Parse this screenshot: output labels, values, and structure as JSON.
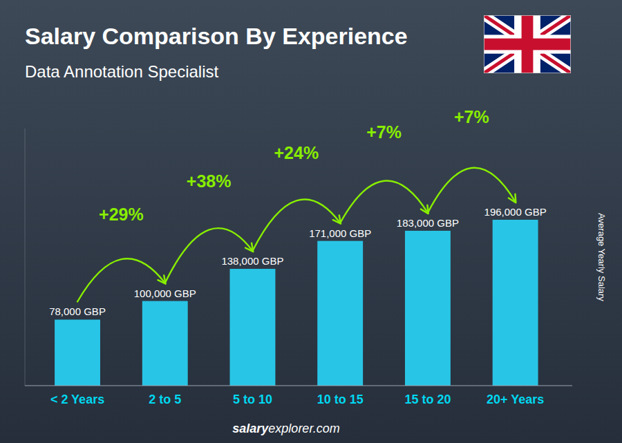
{
  "chart_data": {
    "type": "bar",
    "title": "Salary Comparison By Experience",
    "subtitle": "Data Annotation Specialist",
    "y_label": "Average Yearly Salary",
    "categories": [
      "< 2 Years",
      "2 to 5",
      "5 to 10",
      "10 to 15",
      "15 to 20",
      "20+ Years"
    ],
    "values": [
      78000,
      100000,
      138000,
      171000,
      183000,
      196000
    ],
    "value_labels": [
      "78,000 GBP",
      "100,000 GBP",
      "138,000 GBP",
      "171,000 GBP",
      "183,000 GBP",
      "196,000 GBP"
    ],
    "data_labels": true,
    "annotations": [
      "+29%",
      "+38%",
      "+24%",
      "+7%",
      "+7%"
    ],
    "watermark": [
      "salary",
      "explorer.com"
    ],
    "color": "#29c5e6",
    "ylim": [
      0,
      303800
    ],
    "tick_labels": "x",
    "grid": false
  }
}
